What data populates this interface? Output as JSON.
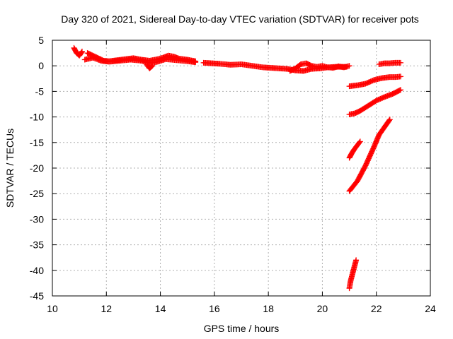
{
  "chart_data": {
    "type": "scatter",
    "title": "Day 320 of 2021, Sidereal Day-to-day VTEC variation (SDTVAR) for receiver pots",
    "xlabel": "GPS time / hours",
    "ylabel": "SDTVAR / TECUs",
    "xlim": [
      10,
      24
    ],
    "ylim": [
      -45,
      5
    ],
    "x_ticks": [
      "10",
      "12",
      "14",
      "16",
      "18",
      "20",
      "22",
      "24"
    ],
    "y_ticks": [
      "5",
      "0",
      "-5",
      "-10",
      "-15",
      "-20",
      "-25",
      "-30",
      "-35",
      "-40",
      "-45"
    ],
    "grid": true,
    "legend": "none",
    "marker_color": "#ff0000",
    "series": [
      {
        "x": [
          10.8,
          10.9,
          11.0,
          11.1
        ],
        "y": [
          3.5,
          2.5,
          2.0,
          2.8
        ]
      },
      {
        "x": [
          11.3,
          11.5,
          11.7,
          11.9,
          12.1,
          12.4,
          12.7,
          13.0,
          13.3,
          13.6,
          13.9,
          14.1,
          14.3,
          14.5,
          14.7,
          15.0,
          15.3
        ],
        "y": [
          2.5,
          2.0,
          1.5,
          1.0,
          0.9,
          1.1,
          1.3,
          1.5,
          1.2,
          1.0,
          1.3,
          1.6,
          2.0,
          1.8,
          1.4,
          1.2,
          0.9
        ]
      },
      {
        "x": [
          11.2,
          11.5,
          11.8,
          12.1,
          12.5,
          12.9,
          13.3,
          13.6,
          13.9,
          14.2,
          14.6,
          15.0,
          15.3
        ],
        "y": [
          1.2,
          1.6,
          1.0,
          0.8,
          1.0,
          1.2,
          1.0,
          0.5,
          0.8,
          1.3,
          1.1,
          0.9,
          0.7
        ]
      },
      {
        "x": [
          13.5,
          13.6,
          13.7
        ],
        "y": [
          0.2,
          -0.5,
          0.0
        ]
      },
      {
        "x": [
          15.6,
          15.9,
          16.2,
          16.6,
          17.0,
          17.4,
          17.8,
          18.1,
          18.4,
          18.7,
          19.0,
          19.3,
          19.6,
          19.9,
          20.2,
          20.5,
          20.9
        ],
        "y": [
          0.6,
          0.5,
          0.4,
          0.2,
          0.3,
          0.0,
          -0.3,
          -0.4,
          -0.5,
          -0.6,
          -0.9,
          -1.0,
          -0.6,
          -0.5,
          -0.3,
          -0.2,
          -0.2
        ]
      },
      {
        "x": [
          18.8,
          19.0,
          19.2,
          19.4,
          19.6,
          19.8,
          20.0,
          20.2,
          20.4,
          20.6,
          20.8,
          21.0
        ],
        "y": [
          -1.0,
          -0.5,
          0.3,
          0.5,
          0.0,
          -0.2,
          0.0,
          -0.3,
          -0.4,
          -0.1,
          -0.3,
          0.0
        ]
      },
      {
        "x": [
          21.0,
          21.3,
          21.6,
          21.9,
          22.2,
          22.5,
          22.7,
          22.9
        ],
        "y": [
          -4.0,
          -3.8,
          -3.5,
          -2.8,
          -2.4,
          -2.2,
          -2.2,
          -2.1
        ]
      },
      {
        "x": [
          22.1,
          22.3,
          22.5,
          22.7,
          22.9
        ],
        "y": [
          0.3,
          0.5,
          0.5,
          0.6,
          0.6
        ]
      },
      {
        "x": [
          21.0,
          21.2,
          21.4,
          21.7,
          22.0,
          22.3,
          22.6,
          22.9
        ],
        "y": [
          -9.5,
          -9.3,
          -8.8,
          -7.8,
          -6.8,
          -6.1,
          -5.5,
          -4.7
        ]
      },
      {
        "x": [
          21.0,
          21.1,
          21.2,
          21.3,
          21.4
        ],
        "y": [
          -18.0,
          -17.0,
          -16.2,
          -15.5,
          -14.8
        ]
      },
      {
        "x": [
          21.0,
          21.3,
          21.6,
          21.9,
          22.1,
          22.3,
          22.5
        ],
        "y": [
          -24.5,
          -22.5,
          -19.5,
          -16.0,
          -13.5,
          -12.0,
          -10.5
        ]
      },
      {
        "x": [
          21.0,
          21.05,
          21.1,
          21.15,
          21.2,
          21.25
        ],
        "y": [
          -43.5,
          -42.0,
          -41.0,
          -40.0,
          -39.0,
          -38.0
        ]
      }
    ]
  }
}
